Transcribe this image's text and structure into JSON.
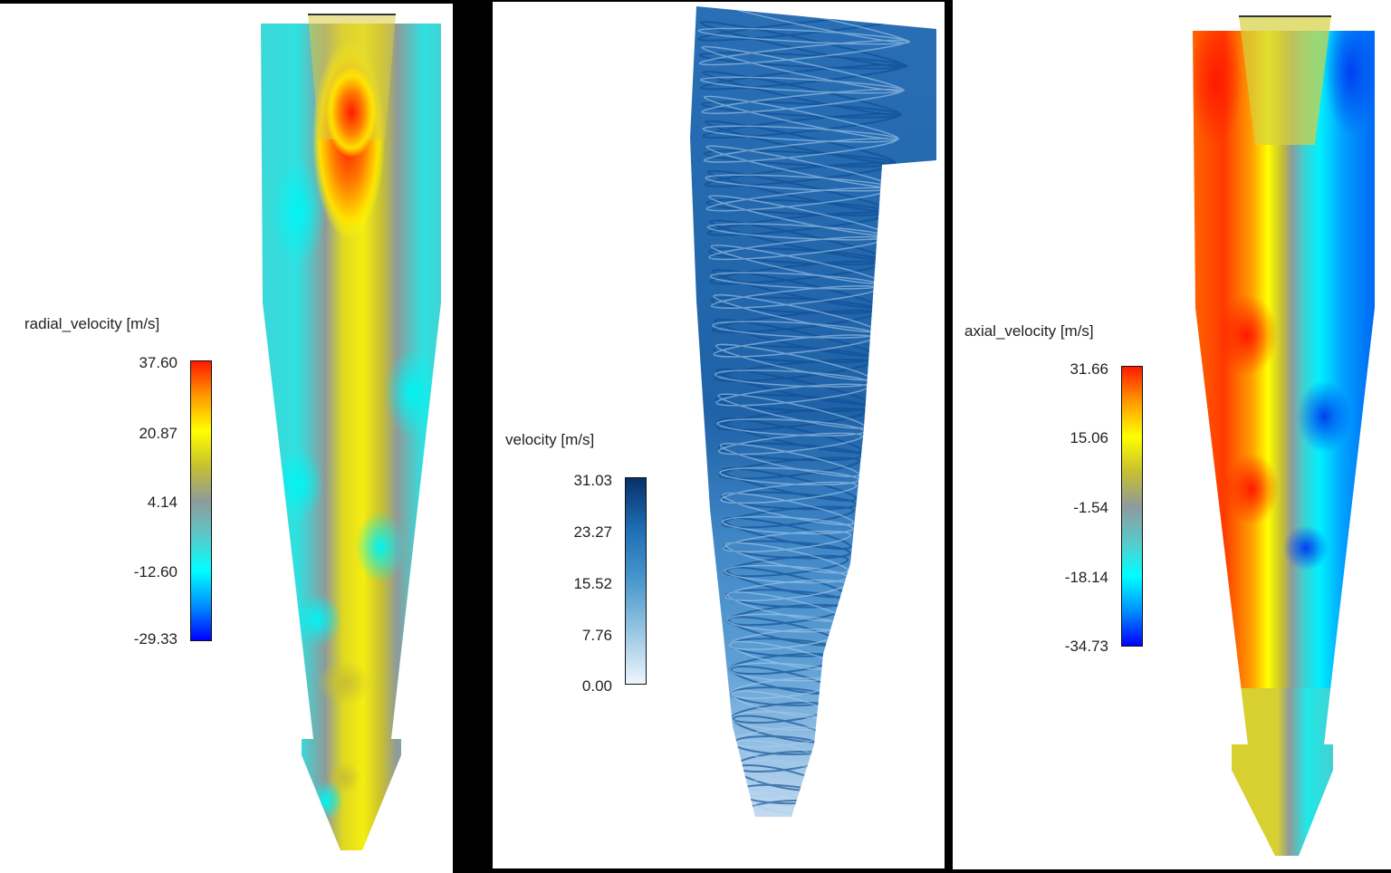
{
  "panels": [
    {
      "id": "radial",
      "legend": {
        "title": "radial_velocity [m/s]",
        "ticks": [
          "37.60",
          "20.87",
          "4.14",
          "-12.60",
          "-29.33"
        ],
        "colormap": [
          "#ff1a00",
          "#ff9a00",
          "#ffff00",
          "#c8c030",
          "#8f9a9a",
          "#5cc8c8",
          "#00ffff",
          "#0090ff",
          "#0000ff"
        ]
      }
    },
    {
      "id": "velocity",
      "legend": {
        "title": "velocity [m/s]",
        "ticks": [
          "31.03",
          "23.27",
          "15.52",
          "7.76",
          "0.00"
        ],
        "colormap": [
          "#08306b",
          "#1f6eb4",
          "#4a98cd",
          "#9ac6e4",
          "#eef5fc"
        ]
      }
    },
    {
      "id": "axial",
      "legend": {
        "title": "axial_velocity [m/s]",
        "ticks": [
          "31.66",
          "15.06",
          "-1.54",
          "-18.14",
          "-34.73"
        ],
        "colormap": [
          "#ff1a00",
          "#ff9a00",
          "#ffff00",
          "#c8c030",
          "#8f9a9a",
          "#5cc8c8",
          "#00ffff",
          "#0090ff",
          "#0000ff"
        ]
      }
    }
  ],
  "chart_data": [
    {
      "type": "heatmap",
      "title": "radial_velocity [m/s]",
      "colorbar": {
        "min": -29.33,
        "max": 37.6,
        "ticks": [
          37.6,
          20.87,
          4.14,
          -12.6,
          -29.33
        ],
        "colormap": "jet-like (blue-cyan-gray-yellow-red)"
      },
      "description": "Cyclone separator cross-section contour of radial velocity; red peak near vortex finder outlet, yellow core, cyan walls"
    },
    {
      "type": "streamlines",
      "title": "velocity [m/s]",
      "colorbar": {
        "min": 0.0,
        "max": 31.03,
        "ticks": [
          31.03,
          23.27,
          15.52,
          7.76,
          0.0
        ],
        "colormap": "Blues"
      },
      "description": "3D swirling streamlines in cyclone; dark blue at top (high velocity), light blue at bottom"
    },
    {
      "type": "heatmap",
      "title": "axial_velocity [m/s]",
      "colorbar": {
        "min": -34.73,
        "max": 31.66,
        "ticks": [
          31.66,
          15.06,
          -1.54,
          -18.14,
          -34.73
        ],
        "colormap": "jet-like (blue-cyan-gray-yellow-red)"
      },
      "description": "Cyclone separator cross-section contour of axial velocity; red/orange on left wall, blue on right, wavy yellow/gray core"
    }
  ]
}
